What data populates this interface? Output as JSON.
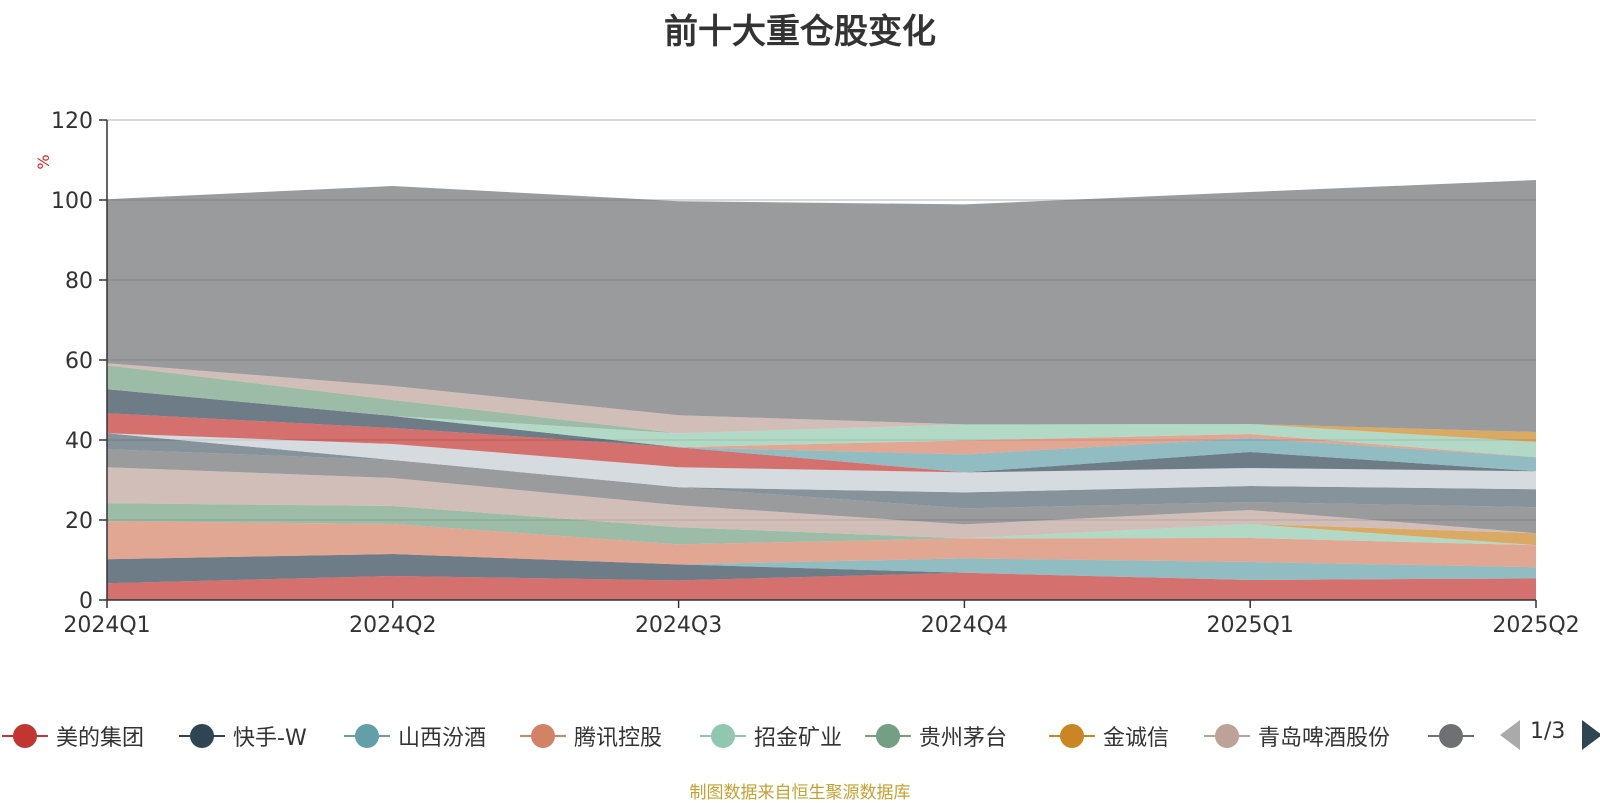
{
  "chart_data": {
    "type": "area",
    "title": "前十大重仓股变化",
    "ylabel": "%",
    "ylim": [
      0,
      120
    ],
    "yticks": [
      0,
      20,
      40,
      60,
      80,
      100,
      120
    ],
    "categories": [
      "2024Q1",
      "2024Q2",
      "2024Q3",
      "2024Q4",
      "2025Q1",
      "2025Q2"
    ],
    "stacked": true,
    "grid": true,
    "legend_position": "bottom",
    "series": [
      {
        "name": "美的集团",
        "color": "#c23531",
        "values": [
          4.2,
          6.0,
          4.9,
          6.8,
          5.0,
          5.4
        ]
      },
      {
        "name": "快手-W",
        "color": "#2f4554",
        "values": [
          6.0,
          5.5,
          4.0,
          0,
          0,
          0
        ]
      },
      {
        "name": "山西汾酒",
        "color": "#61a0a8",
        "values": [
          0,
          0,
          0,
          3.6,
          4.5,
          2.8
        ]
      },
      {
        "name": "腾讯控股",
        "color": "#d48265",
        "values": [
          9.5,
          7.5,
          5.0,
          5.0,
          6.0,
          5.5
        ]
      },
      {
        "name": "招金矿业",
        "color": "#91c7ae",
        "values": [
          0,
          0,
          0,
          0,
          3.5,
          0
        ]
      },
      {
        "name": "贵州茅台",
        "color": "#749f83",
        "values": [
          4.5,
          4.5,
          4.3,
          0,
          0,
          0
        ]
      },
      {
        "name": "金诚信",
        "color": "#ca8622",
        "values": [
          0,
          0,
          0,
          0,
          0,
          3.0
        ]
      },
      {
        "name": "青岛啤酒股份",
        "color": "#bda29a",
        "values": [
          9.0,
          7.0,
          5.5,
          3.5,
          3.5,
          0
        ]
      },
      {
        "name": "",
        "color": "#6e7074",
        "values": [
          4.5,
          4.5,
          4.5,
          4.0,
          2.0,
          6.5
        ]
      },
      {
        "name": "",
        "color": "#546570",
        "values": [
          4.0,
          0,
          0,
          4.0,
          4.0,
          4.5
        ]
      },
      {
        "name": "",
        "color": "#c4ccd3",
        "values": [
          0,
          4.0,
          5.0,
          5.0,
          4.5,
          4.5
        ]
      },
      {
        "name": "",
        "color": "#c23531",
        "values": [
          5.0,
          4.0,
          5.0,
          0,
          0,
          0
        ]
      },
      {
        "name": "",
        "color": "#2f4554",
        "values": [
          6.0,
          3.0,
          0,
          0,
          4.0,
          0
        ]
      },
      {
        "name": "",
        "color": "#61a0a8",
        "values": [
          0,
          0,
          0,
          4.5,
          3.5,
          3.5
        ]
      },
      {
        "name": "",
        "color": "#d48265",
        "values": [
          0,
          0,
          0,
          3.5,
          1.0,
          0
        ]
      },
      {
        "name": "",
        "color": "#91c7ae",
        "values": [
          0,
          0,
          3.5,
          4.0,
          2.5,
          3.8
        ]
      },
      {
        "name": "",
        "color": "#749f83",
        "values": [
          6.0,
          4.0,
          0,
          0,
          0,
          0
        ]
      },
      {
        "name": "",
        "color": "#ca8622",
        "values": [
          0,
          0,
          0,
          0,
          0,
          2.5
        ]
      },
      {
        "name": "",
        "color": "#bda29a",
        "values": [
          0.5,
          3.5,
          4.5,
          0,
          0,
          0
        ]
      },
      {
        "name": "",
        "color": "#6e7074",
        "values": [
          41.0,
          50.0,
          53.5,
          55.0,
          58.0,
          63.0
        ]
      }
    ]
  },
  "legend": {
    "items": [
      {
        "label": "美的集团",
        "color": "#c23531"
      },
      {
        "label": "快手-W",
        "color": "#2f4554"
      },
      {
        "label": "山西汾酒",
        "color": "#61a0a8"
      },
      {
        "label": "腾讯控股",
        "color": "#d48265"
      },
      {
        "label": "招金矿业",
        "color": "#91c7ae"
      },
      {
        "label": "贵州茅台",
        "color": "#749f83"
      },
      {
        "label": "金诚信",
        "color": "#ca8622"
      },
      {
        "label": "青岛啤酒股份",
        "color": "#bda29a"
      },
      {
        "label": "",
        "color": "#6e7074"
      }
    ],
    "page": "1/3"
  },
  "source": "制图数据来自恒生聚源数据库"
}
